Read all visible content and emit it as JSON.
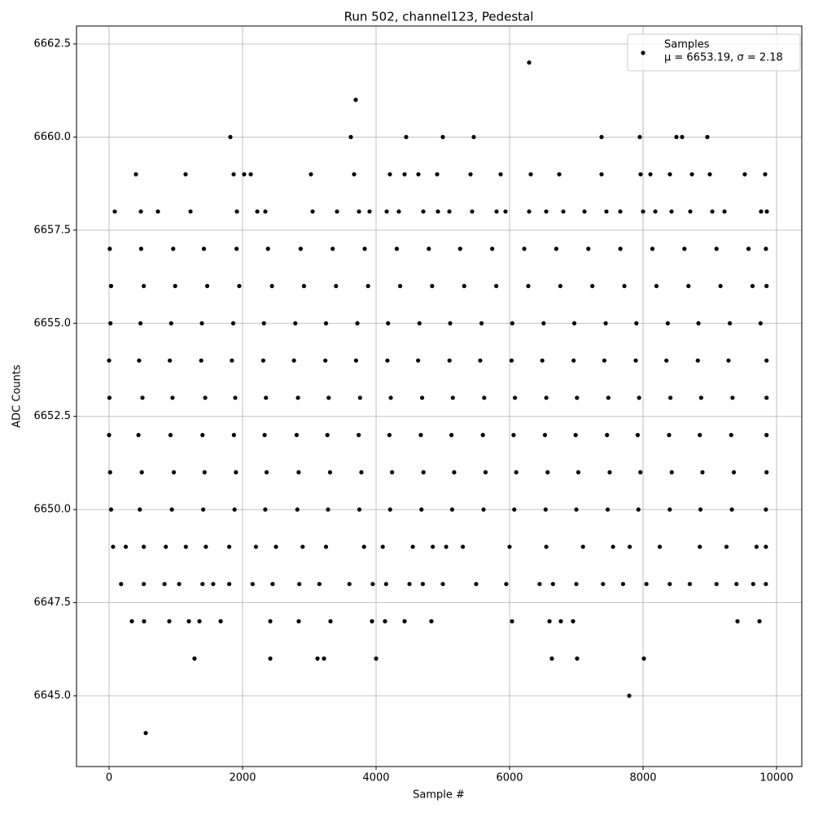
{
  "chart_data": {
    "type": "scatter",
    "title": "Run 502, channel123, Pedestal",
    "xlabel": "Sample #",
    "ylabel": "ADC Counts",
    "xlim": [
      -488,
      10378
    ],
    "ylim": [
      6643.1,
      6662.98
    ],
    "xticks": [
      0,
      2000,
      4000,
      6000,
      8000,
      10000
    ],
    "yticks": [
      {
        "value": 6645,
        "label": "6645.0"
      },
      6647.5,
      {
        "value": 6650,
        "label": "6650.0"
      },
      6652.5,
      {
        "value": 6655,
        "label": "6655.0"
      },
      6657.5,
      {
        "value": 6660,
        "label": "6660.0"
      },
      6662.5
    ],
    "grid": true,
    "legend": "upper right",
    "legend_note": "μ = 6653.19, σ = 2.18",
    "series": [
      {
        "name": "Samples",
        "color": "#000000",
        "x": [
          6293,
          3695,
          1817,
          3622,
          4451,
          5000,
          5463,
          7378,
          7951,
          8500,
          8585,
          8963,
          402,
          1146,
          1866,
          2024,
          2122,
          3024,
          3671,
          4207,
          4427,
          4634,
          4915,
          5415,
          5866,
          6317,
          6744,
          7378,
          7963,
          8110,
          8402,
          8732,
          9000,
          9524,
          9829,
          85,
          476,
          732,
          1220,
          1915,
          2220,
          2341,
          3049,
          3415,
          3744,
          3902,
          4159,
          4341,
          4707,
          4927,
          5098,
          5439,
          5805,
          5939,
          6293,
          6549,
          6805,
          7122,
          7451,
          7659,
          8000,
          8183,
          8427,
          8707,
          9037,
          9220,
          9768,
          9854,
          10,
          480,
          960,
          1420,
          1910,
          2380,
          2870,
          3350,
          3830,
          4310,
          4790,
          5260,
          5740,
          6220,
          6700,
          7180,
          7660,
          8140,
          8620,
          9100,
          9580,
          9840,
          30,
          520,
          990,
          1470,
          1950,
          2440,
          2920,
          3400,
          3880,
          4360,
          4840,
          5320,
          5800,
          6280,
          6760,
          7240,
          7720,
          8200,
          8680,
          9160,
          9640,
          9850,
          20,
          470,
          930,
          1390,
          1860,
          2320,
          2790,
          3250,
          3720,
          4180,
          4650,
          5110,
          5580,
          6040,
          6510,
          6970,
          7440,
          7900,
          8370,
          8830,
          9300,
          9760,
          0,
          450,
          910,
          1380,
          1840,
          2310,
          2770,
          3240,
          3700,
          4170,
          4630,
          5100,
          5560,
          6030,
          6490,
          6960,
          7420,
          7890,
          8350,
          8820,
          9280,
          9850,
          5,
          500,
          950,
          1440,
          1890,
          2350,
          2830,
          3290,
          3760,
          4220,
          4690,
          5150,
          5620,
          6080,
          6550,
          7010,
          7480,
          7940,
          8410,
          8870,
          9340,
          9850,
          0,
          440,
          920,
          1400,
          1870,
          2330,
          2810,
          3270,
          3740,
          4200,
          4670,
          5130,
          5600,
          6060,
          6530,
          6990,
          7460,
          7920,
          8390,
          8850,
          9320,
          9850,
          15,
          490,
          970,
          1430,
          1900,
          2360,
          2840,
          3310,
          3780,
          4240,
          4710,
          5170,
          5640,
          6100,
          6570,
          7030,
          7500,
          7960,
          8430,
          8890,
          9360,
          9850,
          30,
          460,
          940,
          1410,
          1880,
          2340,
          2820,
          3280,
          3750,
          4210,
          4680,
          5140,
          5610,
          6070,
          6540,
          7000,
          7470,
          7930,
          8400,
          8860,
          9330,
          9840,
          60,
          250,
          520,
          850,
          1150,
          1450,
          1800,
          2200,
          2500,
          2900,
          3250,
          3820,
          4100,
          4550,
          4850,
          5050,
          5300,
          6000,
          6550,
          7100,
          7550,
          7800,
          8250,
          8850,
          9250,
          9700,
          9840,
          180,
          520,
          830,
          1050,
          1400,
          1560,
          1800,
          2150,
          2450,
          2850,
          3150,
          3600,
          3950,
          4150,
          4500,
          4700,
          5000,
          5500,
          5950,
          6450,
          6650,
          7000,
          7400,
          7700,
          8050,
          8400,
          8700,
          9100,
          9400,
          9650,
          9840,
          341,
          524,
          902,
          1195,
          1354,
          1671,
          2415,
          2841,
          3317,
          3939,
          4134,
          4427,
          4829,
          6037,
          6598,
          6768,
          6951,
          9415,
          9744,
          1280,
          2415,
          3122,
          3220,
          4000,
          6634,
          7012,
          8012,
          7793,
          549
        ],
        "values": [
          6662,
          6661,
          6660,
          6660,
          6660,
          6660,
          6660,
          6660,
          6660,
          6660,
          6660,
          6660,
          6659,
          6659,
          6659,
          6659,
          6659,
          6659,
          6659,
          6659,
          6659,
          6659,
          6659,
          6659,
          6659,
          6659,
          6659,
          6659,
          6659,
          6659,
          6659,
          6659,
          6659,
          6659,
          6659,
          6658,
          6658,
          6658,
          6658,
          6658,
          6658,
          6658,
          6658,
          6658,
          6658,
          6658,
          6658,
          6658,
          6658,
          6658,
          6658,
          6658,
          6658,
          6658,
          6658,
          6658,
          6658,
          6658,
          6658,
          6658,
          6658,
          6658,
          6658,
          6658,
          6658,
          6658,
          6658,
          6658,
          6657,
          6657,
          6657,
          6657,
          6657,
          6657,
          6657,
          6657,
          6657,
          6657,
          6657,
          6657,
          6657,
          6657,
          6657,
          6657,
          6657,
          6657,
          6657,
          6657,
          6657,
          6657,
          6656,
          6656,
          6656,
          6656,
          6656,
          6656,
          6656,
          6656,
          6656,
          6656,
          6656,
          6656,
          6656,
          6656,
          6656,
          6656,
          6656,
          6656,
          6656,
          6656,
          6656,
          6656,
          6655,
          6655,
          6655,
          6655,
          6655,
          6655,
          6655,
          6655,
          6655,
          6655,
          6655,
          6655,
          6655,
          6655,
          6655,
          6655,
          6655,
          6655,
          6655,
          6655,
          6655,
          6655,
          6654,
          6654,
          6654,
          6654,
          6654,
          6654,
          6654,
          6654,
          6654,
          6654,
          6654,
          6654,
          6654,
          6654,
          6654,
          6654,
          6654,
          6654,
          6654,
          6654,
          6654,
          6654,
          6653,
          6653,
          6653,
          6653,
          6653,
          6653,
          6653,
          6653,
          6653,
          6653,
          6653,
          6653,
          6653,
          6653,
          6653,
          6653,
          6653,
          6653,
          6653,
          6653,
          6653,
          6653,
          6652,
          6652,
          6652,
          6652,
          6652,
          6652,
          6652,
          6652,
          6652,
          6652,
          6652,
          6652,
          6652,
          6652,
          6652,
          6652,
          6652,
          6652,
          6652,
          6652,
          6652,
          6652,
          6651,
          6651,
          6651,
          6651,
          6651,
          6651,
          6651,
          6651,
          6651,
          6651,
          6651,
          6651,
          6651,
          6651,
          6651,
          6651,
          6651,
          6651,
          6651,
          6651,
          6651,
          6651,
          6650,
          6650,
          6650,
          6650,
          6650,
          6650,
          6650,
          6650,
          6650,
          6650,
          6650,
          6650,
          6650,
          6650,
          6650,
          6650,
          6650,
          6650,
          6650,
          6650,
          6650,
          6650,
          6649,
          6649,
          6649,
          6649,
          6649,
          6649,
          6649,
          6649,
          6649,
          6649,
          6649,
          6649,
          6649,
          6649,
          6649,
          6649,
          6649,
          6649,
          6649,
          6649,
          6649,
          6649,
          6649,
          6649,
          6649,
          6649,
          6649,
          6648,
          6648,
          6648,
          6648,
          6648,
          6648,
          6648,
          6648,
          6648,
          6648,
          6648,
          6648,
          6648,
          6648,
          6648,
          6648,
          6648,
          6648,
          6648,
          6648,
          6648,
          6648,
          6648,
          6648,
          6648,
          6648,
          6648,
          6648,
          6648,
          6648,
          6648,
          6647,
          6647,
          6647,
          6647,
          6647,
          6647,
          6647,
          6647,
          6647,
          6647,
          6647,
          6647,
          6647,
          6647,
          6647,
          6647,
          6647,
          6647,
          6647,
          6646,
          6646,
          6646,
          6646,
          6646,
          6646,
          6646,
          6646,
          6645,
          6644
        ]
      }
    ]
  }
}
